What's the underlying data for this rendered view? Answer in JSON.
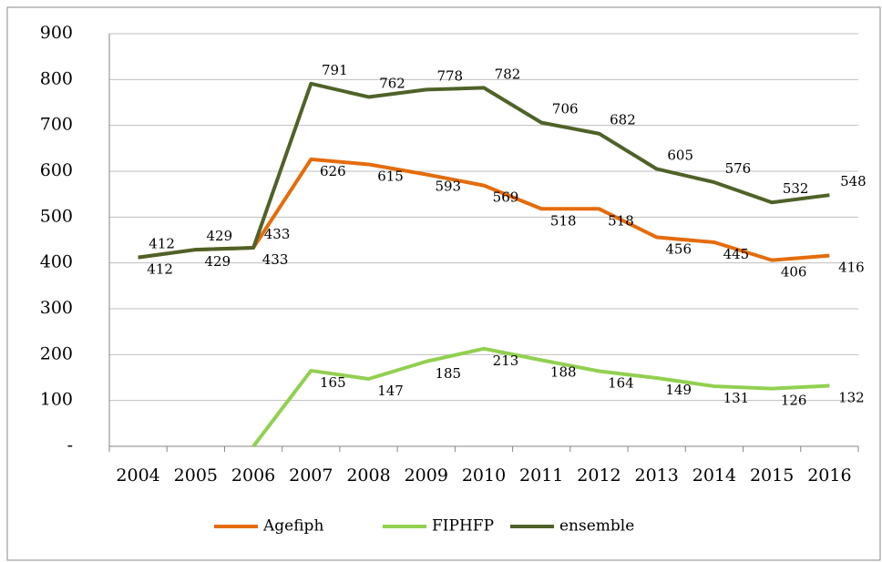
{
  "chart_data": {
    "type": "line",
    "categories": [
      "2004",
      "2005",
      "2006",
      "2007",
      "2008",
      "2009",
      "2010",
      "2011",
      "2012",
      "2013",
      "2014",
      "2015",
      "2016"
    ],
    "series": [
      {
        "name": "Agefiph",
        "color": "#e46c0a",
        "values": [
          412,
          429,
          433,
          626,
          615,
          593,
          569,
          518,
          518,
          456,
          445,
          406,
          416
        ]
      },
      {
        "name": "FIPHFP",
        "color": "#92d050",
        "values": [
          null,
          null,
          0,
          165,
          147,
          185,
          213,
          188,
          164,
          149,
          131,
          126,
          132
        ],
        "value_labels": [
          null,
          null,
          null,
          "165",
          "147",
          "185",
          "213",
          "188",
          "164",
          "149",
          "131",
          "126",
          "132"
        ]
      },
      {
        "name": "ensemble",
        "color": "#4f6228",
        "values": [
          412,
          429,
          433,
          791,
          762,
          778,
          782,
          706,
          682,
          605,
          576,
          532,
          548
        ]
      }
    ],
    "ylim": [
      0,
      900
    ],
    "yticks": [
      {
        "value": 0,
        "label": "-"
      },
      100,
      200,
      300,
      400,
      500,
      600,
      700,
      800,
      900
    ],
    "grid": true,
    "legend": "bottom"
  }
}
